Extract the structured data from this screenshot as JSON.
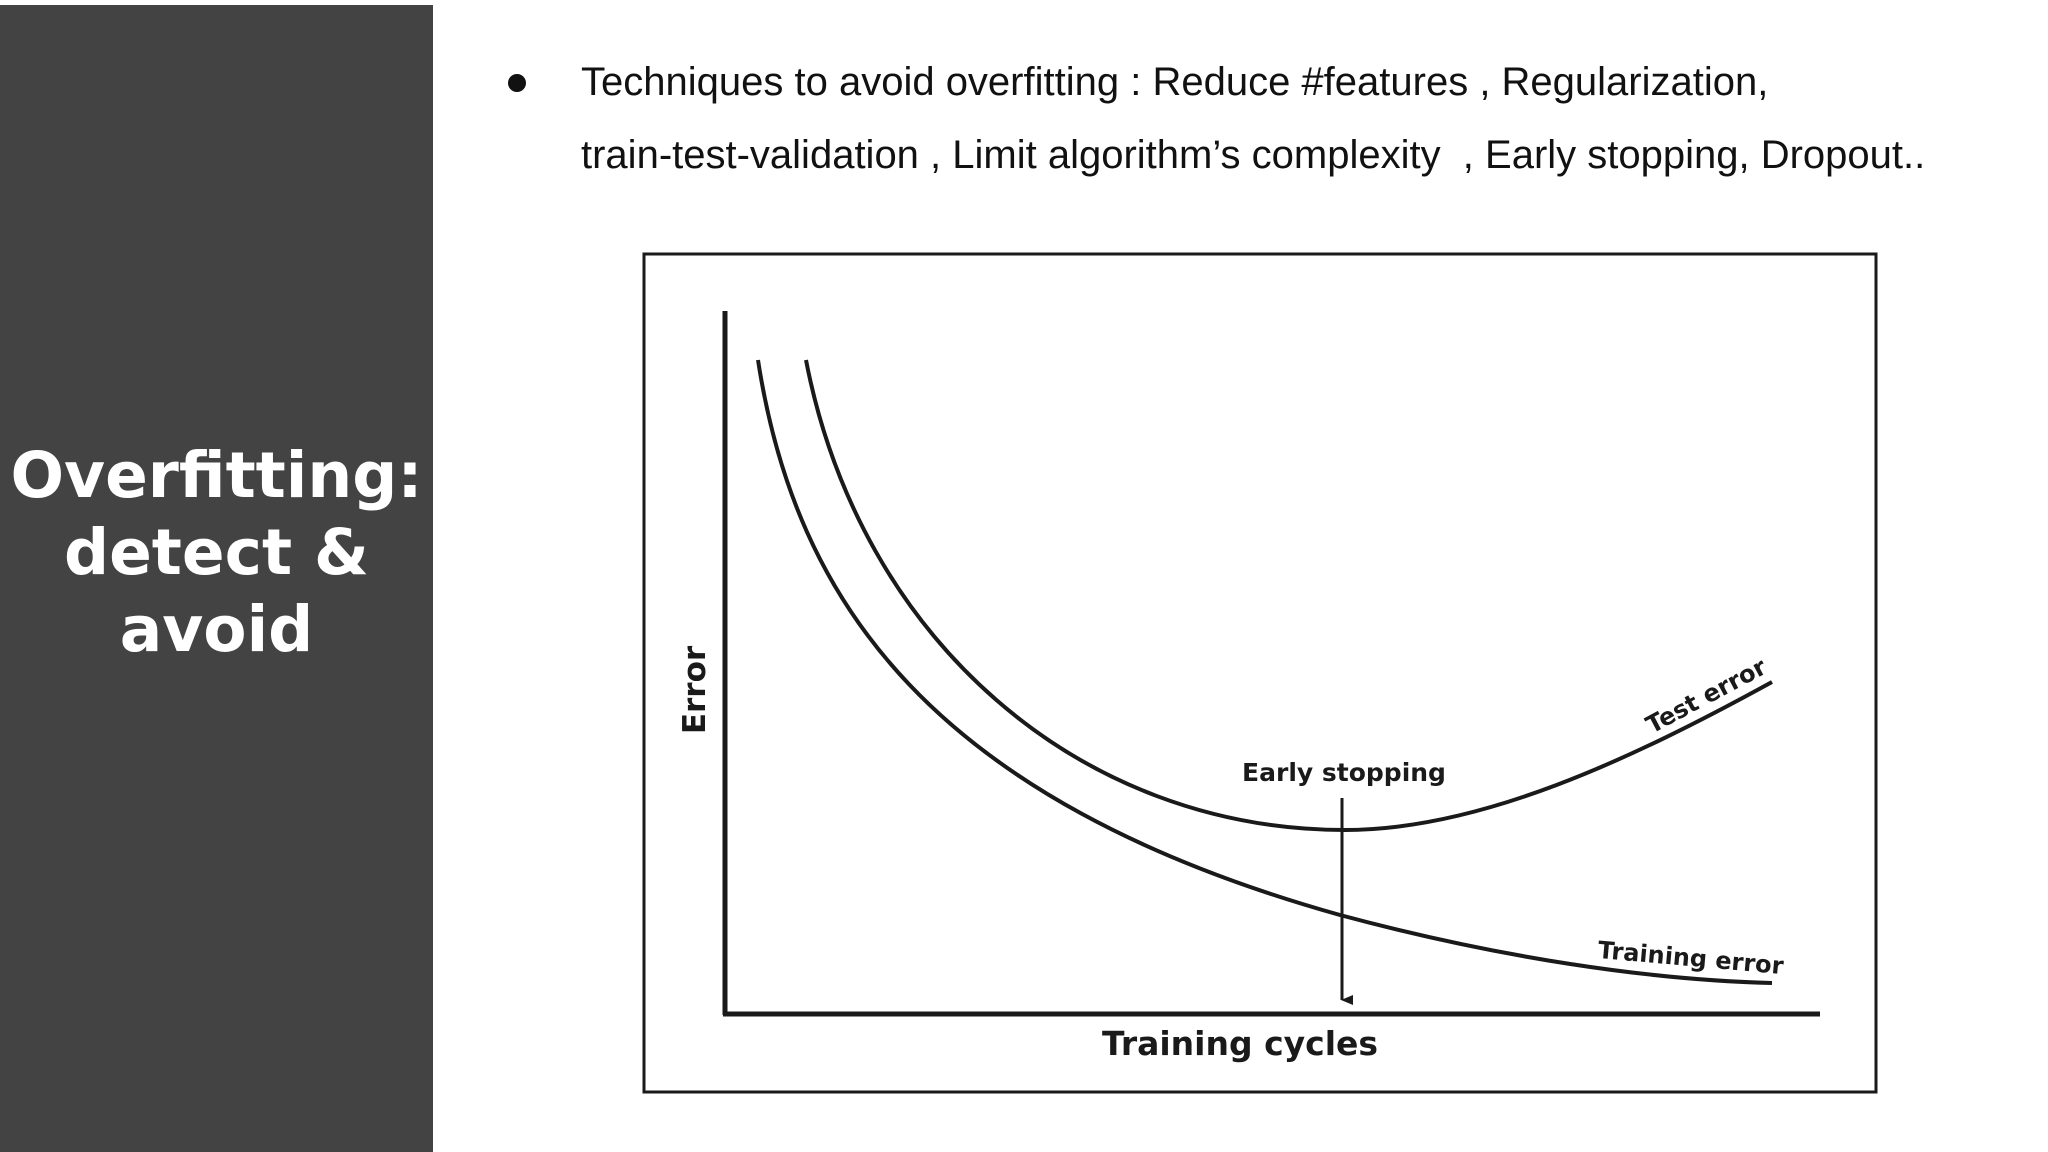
{
  "sidebar": {
    "title_lines": [
      "Overfitting:",
      "detect &",
      "avoid"
    ],
    "background": "#434343",
    "text_color": "#ffffff"
  },
  "content": {
    "bullet_lines": [
      "Techniques to avoid overfitting : Reduce #features , Regularization,",
      "train-test-validation , Limit algorithm’s complexity  , Early stopping, Dropout.."
    ]
  },
  "figure": {
    "y_axis_label": "Error",
    "x_axis_label": "Training cycles",
    "curves": {
      "test": "Test error",
      "training": "Training error"
    },
    "marker_label": "Early stopping",
    "line_color": "#1a1a1a"
  }
}
